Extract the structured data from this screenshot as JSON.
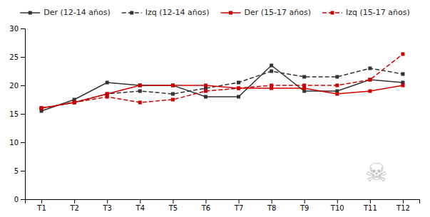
{
  "chart_data": {
    "type": "line",
    "categories": [
      "T1",
      "T2",
      "T3",
      "T4",
      "T5",
      "T6",
      "T7",
      "T8",
      "T9",
      "T10",
      "T11",
      "T12"
    ],
    "series": [
      {
        "name": "Der (12-14 años)",
        "color": "#333333",
        "line_style": "solid",
        "marker": "square",
        "values": [
          15.5,
          17.5,
          20.5,
          20.0,
          20.0,
          18.0,
          18.0,
          23.5,
          19.0,
          19.0,
          21.0,
          20.5
        ]
      },
      {
        "name": "Izq (12-14 años)",
        "color": "#333333",
        "line_style": "dashed",
        "marker": "square",
        "values": [
          16.0,
          17.0,
          18.5,
          19.0,
          18.5,
          19.5,
          20.5,
          22.5,
          21.5,
          21.5,
          23.0,
          22.0
        ]
      },
      {
        "name": "Der (15-17 años)",
        "color": "#cc0000",
        "line_style": "solid",
        "marker": "square",
        "values": [
          16.0,
          17.0,
          18.5,
          20.0,
          20.0,
          20.0,
          19.5,
          19.5,
          19.5,
          18.5,
          19.0,
          20.0
        ]
      },
      {
        "name": "Izq (15-17 años)",
        "color": "#cc0000",
        "line_style": "dashed",
        "marker": "square",
        "values": [
          16.0,
          17.0,
          18.0,
          17.0,
          17.5,
          19.0,
          19.5,
          20.0,
          20.0,
          20.0,
          21.0,
          25.5
        ]
      }
    ],
    "ylim": [
      0,
      30
    ],
    "yticks": [
      0,
      5,
      10,
      15,
      20,
      25,
      30
    ],
    "grid": false,
    "legend": "top",
    "annotations": [
      "☠"
    ]
  }
}
